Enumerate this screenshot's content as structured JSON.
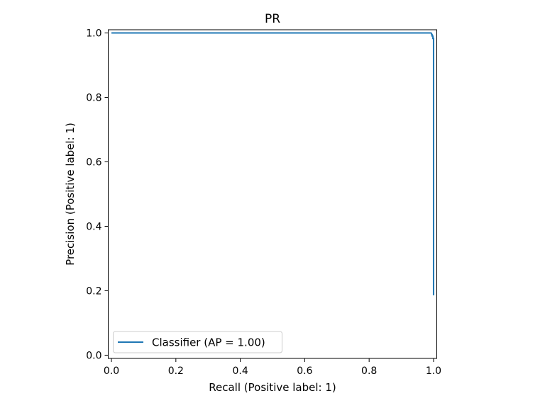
{
  "chart_data": {
    "type": "line",
    "title": "PR",
    "xlabel": "Recall (Positive label: 1)",
    "ylabel": "Precision (Positive label: 1)",
    "xlim": [
      -0.01,
      1.01
    ],
    "ylim": [
      -0.01,
      1.01
    ],
    "xticks": [
      0.0,
      0.2,
      0.4,
      0.6,
      0.8,
      1.0
    ],
    "xtick_labels": [
      "0.0",
      "0.2",
      "0.4",
      "0.6",
      "0.8",
      "1.0"
    ],
    "yticks": [
      0.0,
      0.2,
      0.4,
      0.6,
      0.8,
      1.0
    ],
    "ytick_labels": [
      "0.0",
      "0.2",
      "0.4",
      "0.6",
      "0.8",
      "1.0"
    ],
    "grid": false,
    "legend_position": "bottom-left",
    "series": [
      {
        "name": "Classifier (AP = 1.00)",
        "color": "#1f77b4",
        "x": [
          1.0,
          1.0,
          0.998,
          0.998,
          0.996,
          0.996,
          0.994,
          0.994,
          0.992,
          0.0
        ],
        "y": [
          0.186,
          0.983,
          0.983,
          0.99,
          0.99,
          0.994,
          0.994,
          0.998,
          1.0,
          1.0
        ]
      }
    ]
  }
}
